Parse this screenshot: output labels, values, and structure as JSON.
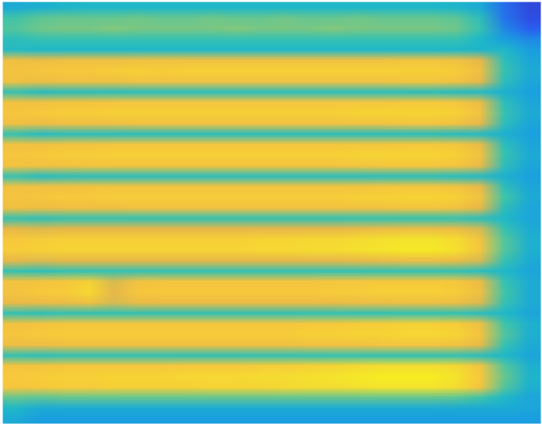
{
  "chart_data": {
    "type": "heatmap",
    "tick_labels": false,
    "clim": [
      0,
      1
    ],
    "cells": [
      [
        0.5,
        0.52,
        0.54,
        0.55,
        0.55,
        0.55,
        0.55,
        0.55,
        0.55,
        0.55,
        0.55,
        0.55,
        0.55,
        0.55,
        0.55,
        0.55,
        0.55,
        0.55,
        0.54,
        0.5,
        0.3,
        0.15
      ],
      [
        0.62,
        0.65,
        0.66,
        0.66,
        0.66,
        0.67,
        0.66,
        0.66,
        0.67,
        0.66,
        0.66,
        0.67,
        0.66,
        0.66,
        0.67,
        0.66,
        0.66,
        0.66,
        0.65,
        0.58,
        0.32,
        0.18
      ],
      [
        0.64,
        0.67,
        0.68,
        0.68,
        0.69,
        0.68,
        0.68,
        0.68,
        0.68,
        0.69,
        0.68,
        0.68,
        0.68,
        0.69,
        0.68,
        0.68,
        0.68,
        0.68,
        0.67,
        0.6,
        0.38,
        0.25
      ],
      [
        0.58,
        0.6,
        0.6,
        0.6,
        0.6,
        0.6,
        0.6,
        0.6,
        0.6,
        0.6,
        0.6,
        0.6,
        0.6,
        0.6,
        0.6,
        0.6,
        0.6,
        0.6,
        0.6,
        0.55,
        0.45,
        0.38
      ],
      [
        0.56,
        0.55,
        0.55,
        0.55,
        0.55,
        0.55,
        0.55,
        0.55,
        0.55,
        0.55,
        0.55,
        0.55,
        0.55,
        0.55,
        0.55,
        0.55,
        0.55,
        0.55,
        0.55,
        0.54,
        0.55,
        0.45
      ],
      [
        0.84,
        0.83,
        0.84,
        0.84,
        0.84,
        0.85,
        0.85,
        0.85,
        0.85,
        0.85,
        0.85,
        0.85,
        0.85,
        0.85,
        0.85,
        0.85,
        0.86,
        0.86,
        0.85,
        0.8,
        0.58,
        0.48
      ],
      [
        0.86,
        0.87,
        0.88,
        0.88,
        0.89,
        0.9,
        0.89,
        0.9,
        0.9,
        0.9,
        0.9,
        0.9,
        0.9,
        0.9,
        0.9,
        0.9,
        0.9,
        0.9,
        0.89,
        0.84,
        0.6,
        0.5
      ],
      [
        0.84,
        0.83,
        0.84,
        0.84,
        0.84,
        0.85,
        0.85,
        0.85,
        0.85,
        0.85,
        0.85,
        0.85,
        0.85,
        0.85,
        0.85,
        0.85,
        0.86,
        0.86,
        0.85,
        0.8,
        0.58,
        0.48
      ],
      [
        0.6,
        0.57,
        0.58,
        0.58,
        0.58,
        0.58,
        0.58,
        0.58,
        0.58,
        0.58,
        0.58,
        0.58,
        0.58,
        0.58,
        0.58,
        0.58,
        0.58,
        0.58,
        0.57,
        0.56,
        0.52,
        0.46
      ],
      [
        0.85,
        0.85,
        0.86,
        0.86,
        0.87,
        0.87,
        0.87,
        0.87,
        0.87,
        0.87,
        0.87,
        0.87,
        0.87,
        0.87,
        0.87,
        0.87,
        0.88,
        0.88,
        0.87,
        0.82,
        0.58,
        0.48
      ],
      [
        0.87,
        0.88,
        0.89,
        0.89,
        0.9,
        0.9,
        0.9,
        0.9,
        0.9,
        0.9,
        0.9,
        0.9,
        0.9,
        0.9,
        0.91,
        0.91,
        0.91,
        0.91,
        0.9,
        0.85,
        0.6,
        0.5
      ],
      [
        0.84,
        0.83,
        0.84,
        0.84,
        0.84,
        0.85,
        0.85,
        0.85,
        0.85,
        0.85,
        0.85,
        0.85,
        0.85,
        0.85,
        0.85,
        0.85,
        0.86,
        0.86,
        0.85,
        0.8,
        0.58,
        0.48
      ],
      [
        0.6,
        0.57,
        0.58,
        0.58,
        0.58,
        0.58,
        0.58,
        0.58,
        0.58,
        0.58,
        0.58,
        0.58,
        0.58,
        0.58,
        0.58,
        0.58,
        0.58,
        0.58,
        0.57,
        0.56,
        0.52,
        0.46
      ],
      [
        0.85,
        0.85,
        0.86,
        0.86,
        0.87,
        0.87,
        0.87,
        0.87,
        0.87,
        0.87,
        0.87,
        0.87,
        0.87,
        0.87,
        0.87,
        0.87,
        0.88,
        0.88,
        0.87,
        0.82,
        0.58,
        0.48
      ],
      [
        0.87,
        0.88,
        0.89,
        0.89,
        0.9,
        0.9,
        0.9,
        0.9,
        0.9,
        0.9,
        0.9,
        0.9,
        0.9,
        0.9,
        0.91,
        0.91,
        0.91,
        0.91,
        0.9,
        0.85,
        0.6,
        0.5
      ],
      [
        0.85,
        0.85,
        0.85,
        0.86,
        0.86,
        0.86,
        0.86,
        0.86,
        0.86,
        0.86,
        0.86,
        0.86,
        0.86,
        0.86,
        0.86,
        0.87,
        0.87,
        0.87,
        0.86,
        0.81,
        0.58,
        0.48
      ],
      [
        0.6,
        0.57,
        0.58,
        0.58,
        0.58,
        0.58,
        0.58,
        0.58,
        0.58,
        0.58,
        0.58,
        0.58,
        0.58,
        0.58,
        0.58,
        0.58,
        0.58,
        0.58,
        0.57,
        0.56,
        0.52,
        0.46
      ],
      [
        0.85,
        0.85,
        0.85,
        0.86,
        0.86,
        0.86,
        0.86,
        0.86,
        0.86,
        0.86,
        0.86,
        0.86,
        0.86,
        0.86,
        0.86,
        0.87,
        0.87,
        0.87,
        0.86,
        0.81,
        0.58,
        0.48
      ],
      [
        0.86,
        0.87,
        0.88,
        0.88,
        0.89,
        0.89,
        0.89,
        0.89,
        0.89,
        0.89,
        0.89,
        0.89,
        0.89,
        0.89,
        0.9,
        0.9,
        0.91,
        0.91,
        0.9,
        0.85,
        0.62,
        0.5
      ],
      [
        0.84,
        0.83,
        0.84,
        0.84,
        0.84,
        0.85,
        0.85,
        0.85,
        0.85,
        0.85,
        0.85,
        0.85,
        0.85,
        0.85,
        0.85,
        0.85,
        0.86,
        0.86,
        0.85,
        0.8,
        0.58,
        0.48
      ],
      [
        0.6,
        0.59,
        0.6,
        0.6,
        0.6,
        0.6,
        0.6,
        0.6,
        0.6,
        0.6,
        0.6,
        0.6,
        0.6,
        0.6,
        0.6,
        0.6,
        0.6,
        0.6,
        0.6,
        0.58,
        0.55,
        0.48
      ],
      [
        0.8,
        0.79,
        0.8,
        0.8,
        0.8,
        0.8,
        0.8,
        0.8,
        0.8,
        0.8,
        0.8,
        0.8,
        0.8,
        0.8,
        0.81,
        0.82,
        0.83,
        0.83,
        0.82,
        0.78,
        0.6,
        0.5
      ],
      [
        0.88,
        0.89,
        0.9,
        0.9,
        0.9,
        0.9,
        0.9,
        0.9,
        0.9,
        0.9,
        0.91,
        0.91,
        0.92,
        0.92,
        0.93,
        0.94,
        0.95,
        0.95,
        0.93,
        0.86,
        0.64,
        0.52
      ],
      [
        0.89,
        0.9,
        0.91,
        0.91,
        0.91,
        0.91,
        0.91,
        0.91,
        0.91,
        0.91,
        0.92,
        0.92,
        0.93,
        0.93,
        0.94,
        0.95,
        0.96,
        0.96,
        0.94,
        0.87,
        0.64,
        0.52
      ],
      [
        0.8,
        0.79,
        0.8,
        0.8,
        0.8,
        0.8,
        0.8,
        0.8,
        0.8,
        0.8,
        0.8,
        0.8,
        0.8,
        0.8,
        0.81,
        0.82,
        0.83,
        0.83,
        0.82,
        0.78,
        0.6,
        0.5
      ],
      [
        0.6,
        0.59,
        0.6,
        0.6,
        0.6,
        0.6,
        0.6,
        0.6,
        0.6,
        0.6,
        0.6,
        0.6,
        0.6,
        0.6,
        0.6,
        0.6,
        0.6,
        0.6,
        0.6,
        0.58,
        0.55,
        0.48
      ],
      [
        0.85,
        0.86,
        0.87,
        0.9,
        0.78,
        0.85,
        0.86,
        0.86,
        0.86,
        0.86,
        0.86,
        0.86,
        0.86,
        0.87,
        0.87,
        0.88,
        0.88,
        0.88,
        0.87,
        0.82,
        0.6,
        0.5
      ],
      [
        0.86,
        0.88,
        0.89,
        0.92,
        0.8,
        0.87,
        0.88,
        0.88,
        0.88,
        0.88,
        0.88,
        0.88,
        0.88,
        0.89,
        0.89,
        0.9,
        0.9,
        0.9,
        0.89,
        0.84,
        0.62,
        0.5
      ],
      [
        0.81,
        0.82,
        0.82,
        0.84,
        0.78,
        0.82,
        0.82,
        0.82,
        0.82,
        0.82,
        0.82,
        0.82,
        0.82,
        0.82,
        0.83,
        0.83,
        0.84,
        0.84,
        0.83,
        0.79,
        0.6,
        0.5
      ],
      [
        0.6,
        0.59,
        0.6,
        0.6,
        0.6,
        0.6,
        0.6,
        0.6,
        0.6,
        0.6,
        0.6,
        0.6,
        0.6,
        0.6,
        0.6,
        0.6,
        0.6,
        0.6,
        0.6,
        0.58,
        0.55,
        0.48
      ],
      [
        0.85,
        0.86,
        0.87,
        0.87,
        0.87,
        0.87,
        0.87,
        0.87,
        0.87,
        0.87,
        0.87,
        0.87,
        0.88,
        0.88,
        0.89,
        0.89,
        0.9,
        0.9,
        0.89,
        0.84,
        0.62,
        0.52
      ],
      [
        0.87,
        0.88,
        0.89,
        0.89,
        0.89,
        0.89,
        0.89,
        0.89,
        0.89,
        0.89,
        0.89,
        0.89,
        0.9,
        0.9,
        0.91,
        0.91,
        0.92,
        0.92,
        0.91,
        0.86,
        0.64,
        0.52
      ],
      [
        0.83,
        0.83,
        0.84,
        0.84,
        0.84,
        0.84,
        0.84,
        0.84,
        0.84,
        0.84,
        0.84,
        0.84,
        0.85,
        0.85,
        0.85,
        0.86,
        0.86,
        0.86,
        0.85,
        0.81,
        0.6,
        0.5
      ],
      [
        0.6,
        0.59,
        0.6,
        0.6,
        0.6,
        0.6,
        0.6,
        0.6,
        0.6,
        0.6,
        0.6,
        0.6,
        0.6,
        0.6,
        0.6,
        0.6,
        0.6,
        0.6,
        0.6,
        0.58,
        0.55,
        0.48
      ],
      [
        0.86,
        0.86,
        0.87,
        0.87,
        0.87,
        0.87,
        0.87,
        0.88,
        0.88,
        0.88,
        0.89,
        0.89,
        0.9,
        0.91,
        0.92,
        0.93,
        0.93,
        0.93,
        0.92,
        0.86,
        0.64,
        0.52
      ],
      [
        0.88,
        0.89,
        0.9,
        0.9,
        0.91,
        0.91,
        0.91,
        0.92,
        0.92,
        0.92,
        0.93,
        0.93,
        0.94,
        0.95,
        0.96,
        0.97,
        0.97,
        0.97,
        0.95,
        0.88,
        0.66,
        0.54
      ],
      [
        0.87,
        0.88,
        0.89,
        0.89,
        0.9,
        0.9,
        0.9,
        0.9,
        0.91,
        0.91,
        0.91,
        0.92,
        0.93,
        0.93,
        0.94,
        0.95,
        0.95,
        0.95,
        0.93,
        0.86,
        0.64,
        0.52
      ],
      [
        0.66,
        0.65,
        0.66,
        0.66,
        0.66,
        0.66,
        0.66,
        0.66,
        0.66,
        0.66,
        0.66,
        0.66,
        0.66,
        0.66,
        0.66,
        0.66,
        0.66,
        0.66,
        0.65,
        0.62,
        0.55,
        0.48
      ],
      [
        0.55,
        0.5,
        0.5,
        0.5,
        0.5,
        0.5,
        0.5,
        0.5,
        0.5,
        0.5,
        0.5,
        0.5,
        0.5,
        0.5,
        0.5,
        0.5,
        0.5,
        0.5,
        0.5,
        0.5,
        0.5,
        0.48
      ],
      [
        0.5,
        0.45,
        0.45,
        0.45,
        0.45,
        0.45,
        0.45,
        0.45,
        0.45,
        0.45,
        0.45,
        0.45,
        0.45,
        0.45,
        0.45,
        0.45,
        0.45,
        0.45,
        0.45,
        0.45,
        0.45,
        0.45
      ]
    ]
  }
}
